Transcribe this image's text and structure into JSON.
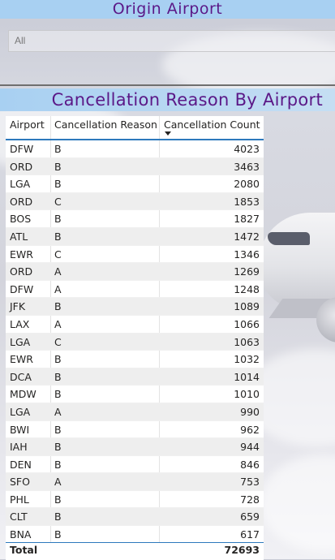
{
  "slicer": {
    "title": "Origin Airport",
    "selected_value": "All"
  },
  "table": {
    "title": "Cancellation Reason By Airport",
    "columns": [
      "Airport",
      "Cancellation Reason",
      "Cancellation Count"
    ],
    "sort": {
      "column": "Cancellation Count",
      "direction": "descending"
    },
    "rows": [
      {
        "airport": "DFW",
        "reason": "B",
        "count": "4023"
      },
      {
        "airport": "ORD",
        "reason": "B",
        "count": "3463"
      },
      {
        "airport": "LGA",
        "reason": "B",
        "count": "2080"
      },
      {
        "airport": "ORD",
        "reason": "C",
        "count": "1853"
      },
      {
        "airport": "BOS",
        "reason": "B",
        "count": "1827"
      },
      {
        "airport": "ATL",
        "reason": "B",
        "count": "1472"
      },
      {
        "airport": "EWR",
        "reason": "C",
        "count": "1346"
      },
      {
        "airport": "ORD",
        "reason": "A",
        "count": "1269"
      },
      {
        "airport": "DFW",
        "reason": "A",
        "count": "1248"
      },
      {
        "airport": "JFK",
        "reason": "B",
        "count": "1089"
      },
      {
        "airport": "LAX",
        "reason": "A",
        "count": "1066"
      },
      {
        "airport": "LGA",
        "reason": "C",
        "count": "1063"
      },
      {
        "airport": "EWR",
        "reason": "B",
        "count": "1032"
      },
      {
        "airport": "DCA",
        "reason": "B",
        "count": "1014"
      },
      {
        "airport": "MDW",
        "reason": "B",
        "count": "1010"
      },
      {
        "airport": "LGA",
        "reason": "A",
        "count": "990"
      },
      {
        "airport": "BWI",
        "reason": "B",
        "count": "962"
      },
      {
        "airport": "IAH",
        "reason": "B",
        "count": "944"
      },
      {
        "airport": "DEN",
        "reason": "B",
        "count": "846"
      },
      {
        "airport": "SFO",
        "reason": "A",
        "count": "753"
      },
      {
        "airport": "PHL",
        "reason": "B",
        "count": "728"
      },
      {
        "airport": "CLT",
        "reason": "B",
        "count": "659"
      },
      {
        "airport": "BNA",
        "reason": "B",
        "count": "617"
      }
    ],
    "total": {
      "label": "Total",
      "value": "72693"
    }
  },
  "colors": {
    "title_text": "#5b1887",
    "header_bg": "#a8d0f2",
    "accent_line": "#2d79bd",
    "alt_row": "#eeeeee"
  },
  "icons": {
    "sort": "sort-descending-icon"
  }
}
